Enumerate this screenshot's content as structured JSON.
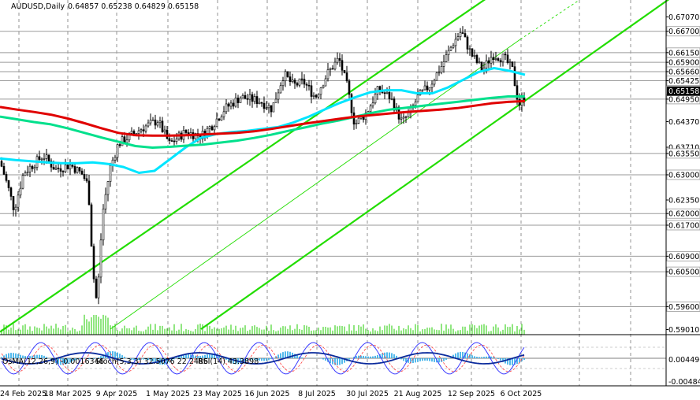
{
  "header": {
    "symbol": "AUDUSD,Daily",
    "ohlc": "0.64857 0.65238 0.64829 0.65158"
  },
  "oscillator_header": {
    "osma": "OsMA(12,26,9) -0.0016346",
    "stoch": "Stoch(5,3,3) 32.5076 22.2486",
    "rsi": "RSI(14) 43.3898"
  },
  "chart_data": {
    "type": "candlestick",
    "symbol": "AUDUSD",
    "timeframe": "Daily",
    "price_axis": {
      "min": 0.59,
      "max": 0.6715,
      "ticks": [
        "0.67070",
        "0.66700",
        "0.66150",
        "0.65900",
        "0.65660",
        "0.65425",
        "0.64950",
        "0.64370",
        "0.63710",
        "0.63550",
        "0.63000",
        "0.62350",
        "0.62000",
        "0.61700",
        "0.60900",
        "0.60500",
        "0.59600",
        "0.59010"
      ],
      "highlighted": [
        "0.66700",
        "0.66150",
        "0.65900",
        "0.65660",
        "0.65425",
        "0.64950",
        "0.63550",
        "0.63000",
        "0.62000",
        "0.61700",
        "0.60900",
        "0.60500",
        "0.59600"
      ],
      "current_price": "0.65158"
    },
    "horizontal_levels": [
      0.667,
      0.6615,
      0.659,
      0.6566,
      0.65425,
      0.6495,
      0.6355,
      0.63,
      0.62,
      0.617,
      0.609,
      0.605,
      0.596
    ],
    "date_ticks": [
      "24 Feb 2025",
      "18 Mar 2025",
      "9 Apr 2025",
      "1 May 2025",
      "23 May 2025",
      "16 Jun 2025",
      "8 Jul 2025",
      "30 Jul 2025",
      "21 Aug 2025",
      "12 Sep 2025",
      "6 Oct 2025"
    ],
    "series": [
      {
        "kind": "ema",
        "color": "#00e5ff",
        "values": [
          0.6342,
          0.6338,
          0.6335,
          0.6332,
          0.633,
          0.633,
          0.6332,
          0.6328,
          0.632,
          0.6305,
          0.631,
          0.634,
          0.637,
          0.6395,
          0.6405,
          0.641,
          0.6413,
          0.6418,
          0.6423,
          0.6435,
          0.645,
          0.6468,
          0.6485,
          0.65,
          0.6513,
          0.6518,
          0.6518,
          0.651,
          0.651,
          0.6525,
          0.6545,
          0.6565,
          0.6575,
          0.6568,
          0.6558
        ]
      },
      {
        "kind": "ema",
        "color": "#00e08c",
        "values": [
          0.645,
          0.6443,
          0.6436,
          0.643,
          0.642,
          0.6408,
          0.6396,
          0.6385,
          0.6374,
          0.637,
          0.6372,
          0.6375,
          0.6378,
          0.6383,
          0.6388,
          0.6395,
          0.6403,
          0.6413,
          0.6422,
          0.6432,
          0.644,
          0.645,
          0.646,
          0.6468,
          0.6473,
          0.6478,
          0.6483,
          0.6488,
          0.6493,
          0.6498,
          0.6502,
          0.6502
        ]
      },
      {
        "kind": "ema",
        "color": "#e00000",
        "values": [
          0.6475,
          0.6468,
          0.6462,
          0.6455,
          0.6445,
          0.6433,
          0.642,
          0.6408,
          0.6402,
          0.6401,
          0.6401,
          0.6402,
          0.6404,
          0.6406,
          0.6408,
          0.6412,
          0.6418,
          0.6425,
          0.6432,
          0.6438,
          0.6444,
          0.645,
          0.6454,
          0.6458,
          0.6462,
          0.6465,
          0.6468,
          0.6472,
          0.6478,
          0.6484,
          0.6488,
          0.649
        ]
      }
    ],
    "channel": {
      "color": "#22dd00"
    }
  }
}
